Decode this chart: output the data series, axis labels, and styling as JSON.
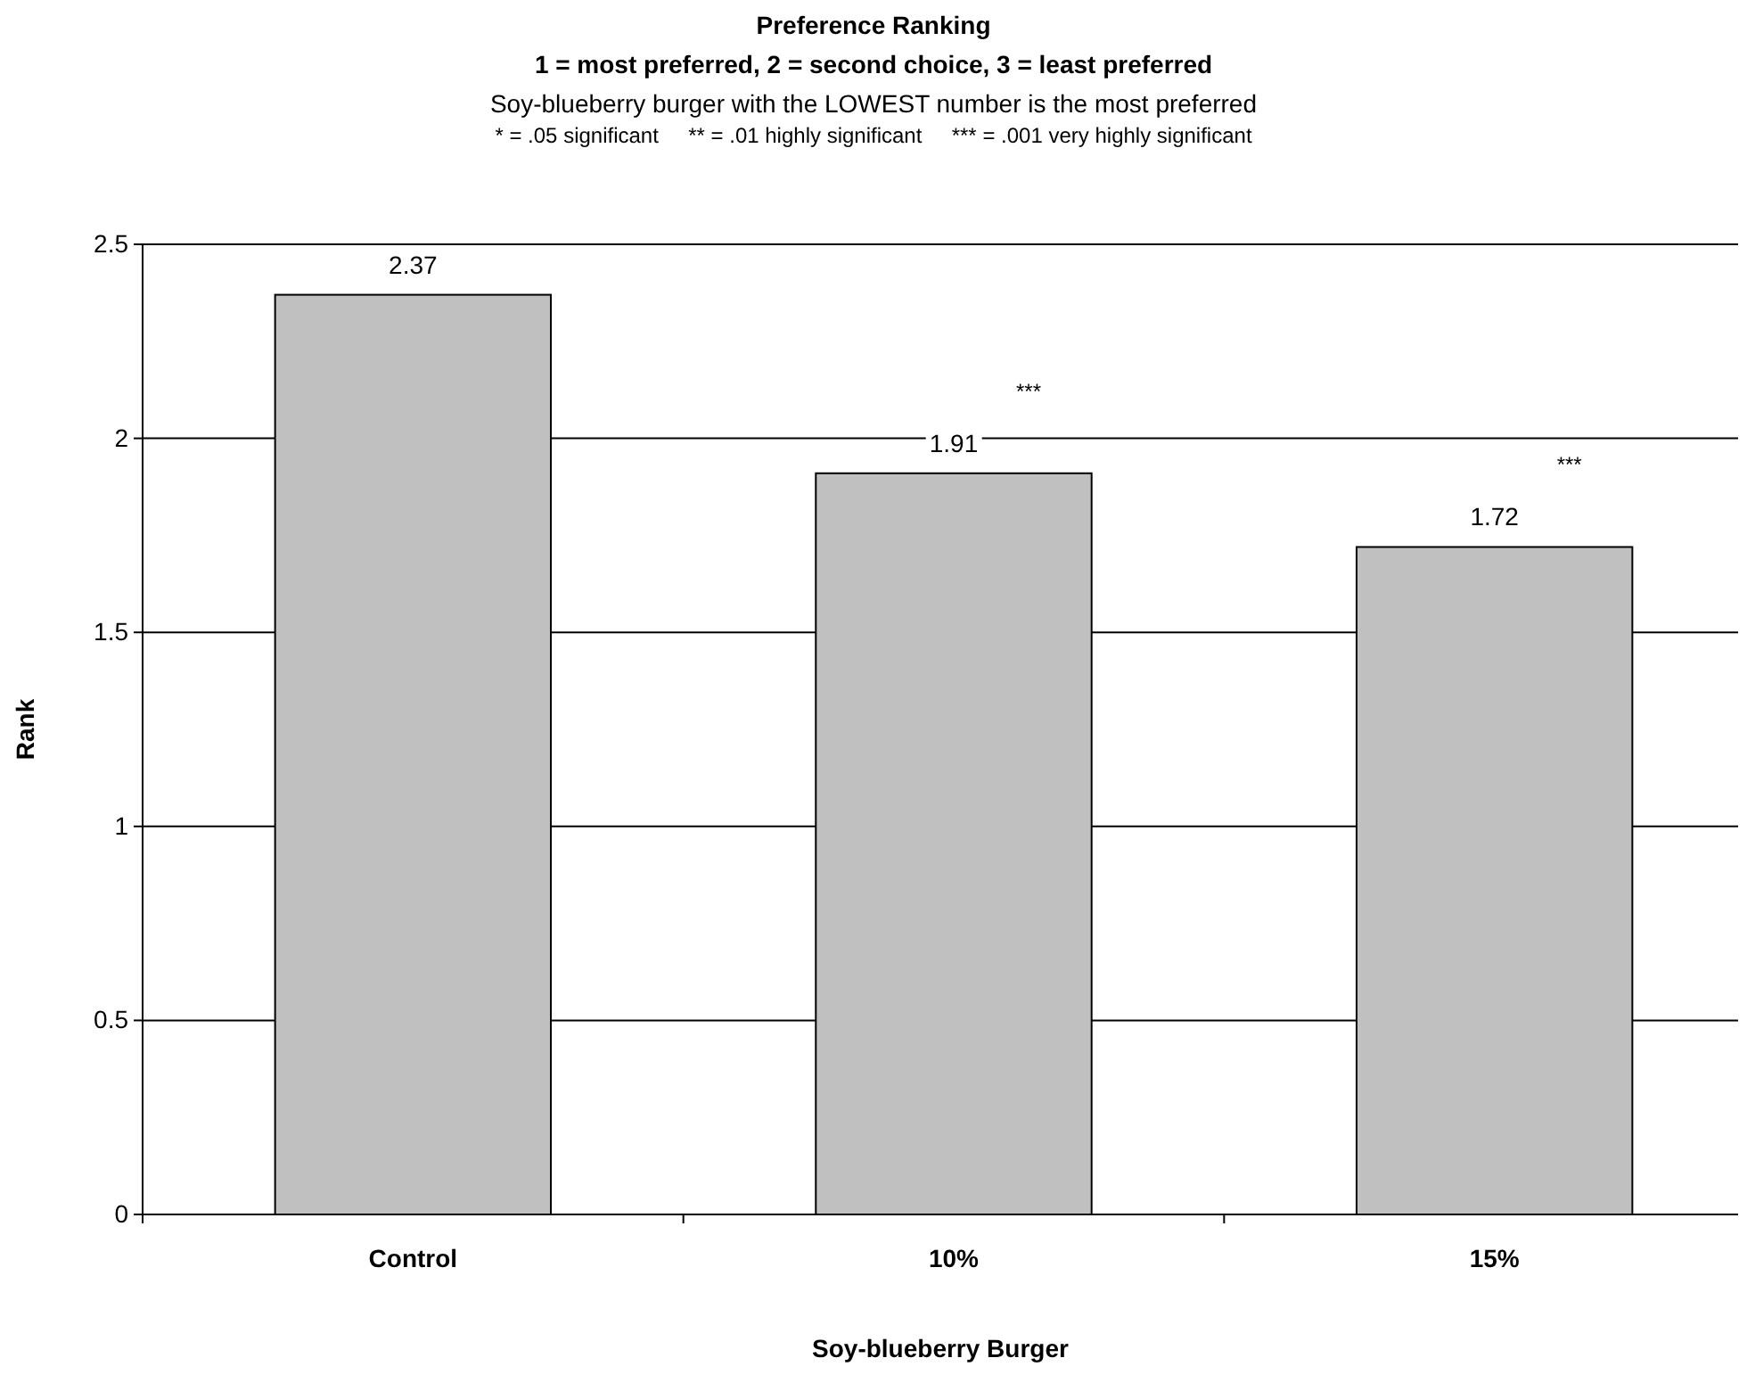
{
  "chart_data": {
    "type": "bar",
    "title": "Preference Ranking\n1 = most preferred, 2 = second choice, 3 = least preferred",
    "subtitle": "Soy-blueberry burger with the LOWEST number is the most preferred",
    "xlabel": "Soy-blueberry Burger",
    "ylabel": "Rank",
    "categories": [
      "Control",
      "10%",
      "15%"
    ],
    "values": [
      2.37,
      1.91,
      1.72
    ],
    "color": "#c0c0c0",
    "data_labels": true,
    "ylim": [
      0,
      2.5
    ],
    "yticks": [
      0,
      0.5,
      1,
      1.5,
      2,
      2.5
    ],
    "grid": "y",
    "annotations": [
      "* = .05 significant     ** = .01 highly significant     *** = .001 very highly significant",
      "***",
      "***"
    ]
  }
}
